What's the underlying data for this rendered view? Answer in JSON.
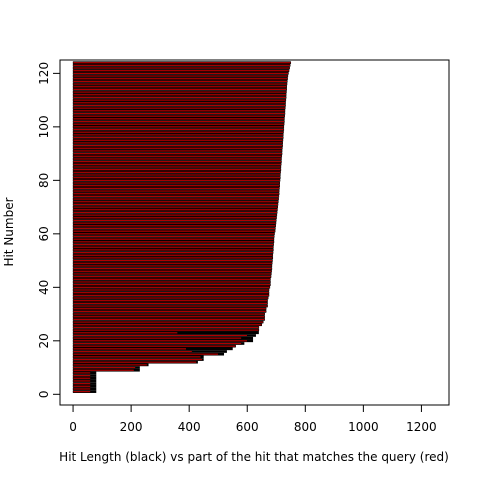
{
  "chart_data": {
    "type": "bar",
    "orientation": "horizontal",
    "xlabel": "Hit Length (black) vs part of the hit that matches the query (red)",
    "ylabel": "Hit Number",
    "xlim": [
      -45,
      1295
    ],
    "ylim": [
      -4,
      125
    ],
    "x_ticks": [
      0,
      200,
      400,
      600,
      800,
      1000,
      1200
    ],
    "y_ticks": [
      0,
      20,
      40,
      60,
      80,
      100,
      120
    ],
    "grid": false,
    "legend": "none",
    "colors": {
      "hit_length": "#000000",
      "query_match": "#b00000",
      "query_match_border": "#000000"
    },
    "series": [
      {
        "name": "Hit Length (black)",
        "hit": [
          1,
          2,
          3,
          4,
          5,
          6,
          7,
          8,
          9,
          10,
          11,
          12,
          13,
          14,
          15,
          16,
          17,
          18,
          19,
          20,
          21,
          22,
          23,
          24,
          25,
          26,
          27,
          28,
          29,
          30,
          31,
          32,
          33,
          34,
          35,
          36,
          37,
          38,
          39,
          40,
          41,
          42,
          43,
          44,
          45,
          46,
          47,
          48,
          49,
          50,
          51,
          52,
          53,
          54,
          55,
          56,
          57,
          58,
          59,
          60,
          61,
          62,
          63,
          64,
          65,
          66,
          67,
          68,
          69,
          70,
          71,
          72,
          73,
          74,
          75,
          76,
          77,
          78,
          79,
          80,
          81,
          82,
          83,
          84,
          85,
          86,
          87,
          88,
          89,
          90,
          91,
          92,
          93,
          94,
          95,
          96,
          97,
          98,
          99,
          100,
          101,
          102,
          103,
          104,
          105,
          106,
          107,
          108,
          109,
          110,
          111,
          112,
          113,
          114,
          115,
          116,
          117,
          118,
          119,
          120,
          121,
          122,
          123,
          124
        ],
        "values": [
          80,
          80,
          80,
          80,
          80,
          80,
          80,
          80,
          230,
          230,
          260,
          430,
          450,
          450,
          520,
          530,
          550,
          560,
          590,
          620,
          620,
          630,
          640,
          640,
          640,
          650,
          655,
          660,
          660,
          660,
          665,
          665,
          670,
          670,
          670,
          672,
          675,
          675,
          675,
          678,
          680,
          680,
          680,
          682,
          683,
          684,
          685,
          685,
          686,
          687,
          688,
          688,
          689,
          690,
          690,
          691,
          692,
          692,
          693,
          694,
          696,
          697,
          698,
          699,
          700,
          701,
          702,
          703,
          704,
          705,
          706,
          707,
          708,
          709,
          710,
          710,
          711,
          712,
          712,
          713,
          714,
          714,
          715,
          716,
          716,
          717,
          718,
          718,
          719,
          720,
          720,
          721,
          722,
          722,
          723,
          724,
          724,
          725,
          726,
          726,
          727,
          728,
          728,
          729,
          730,
          730,
          731,
          732,
          732,
          733,
          734,
          734,
          735,
          736,
          736,
          737,
          738,
          739,
          740,
          742,
          744,
          746,
          748,
          750
        ]
      },
      {
        "name": "part of the hit that matches the query (red)",
        "hit": [
          1,
          2,
          3,
          4,
          5,
          6,
          7,
          8,
          9,
          10,
          11,
          12,
          13,
          14,
          15,
          16,
          17,
          18,
          19,
          20,
          21,
          22,
          23,
          24,
          25,
          26,
          27,
          28,
          29,
          30,
          31,
          32,
          33,
          34,
          35,
          36,
          37,
          38,
          39,
          40,
          41,
          42,
          43,
          44,
          45,
          46,
          47,
          48,
          49,
          50,
          51,
          52,
          53,
          54,
          55,
          56,
          57,
          58,
          59,
          60,
          61,
          62,
          63,
          64,
          65,
          66,
          67,
          68,
          69,
          70,
          71,
          72,
          73,
          74,
          75,
          76,
          77,
          78,
          79,
          80,
          81,
          82,
          83,
          84,
          85,
          86,
          87,
          88,
          89,
          90,
          91,
          92,
          93,
          94,
          95,
          96,
          97,
          98,
          99,
          100,
          101,
          102,
          103,
          104,
          105,
          106,
          107,
          108,
          109,
          110,
          111,
          112,
          113,
          114,
          115,
          116,
          117,
          118,
          119,
          120,
          121,
          122,
          123,
          124
        ],
        "values": [
          60,
          60,
          60,
          60,
          60,
          60,
          60,
          60,
          210,
          215,
          255,
          425,
          445,
          440,
          500,
          410,
          390,
          560,
          580,
          600,
          580,
          600,
          360,
          640,
          640,
          650,
          655,
          660,
          660,
          660,
          665,
          665,
          670,
          670,
          670,
          672,
          675,
          675,
          675,
          678,
          680,
          680,
          680,
          682,
          683,
          684,
          685,
          685,
          686,
          687,
          688,
          688,
          689,
          690,
          690,
          691,
          692,
          692,
          693,
          694,
          696,
          697,
          698,
          699,
          700,
          701,
          702,
          703,
          704,
          705,
          706,
          707,
          708,
          709,
          710,
          710,
          711,
          712,
          712,
          713,
          714,
          714,
          715,
          716,
          716,
          717,
          718,
          718,
          719,
          720,
          720,
          721,
          722,
          722,
          723,
          724,
          724,
          725,
          726,
          726,
          727,
          728,
          728,
          729,
          730,
          730,
          731,
          732,
          732,
          733,
          734,
          734,
          735,
          736,
          736,
          737,
          738,
          739,
          740,
          742,
          744,
          746,
          748,
          750
        ]
      }
    ]
  }
}
